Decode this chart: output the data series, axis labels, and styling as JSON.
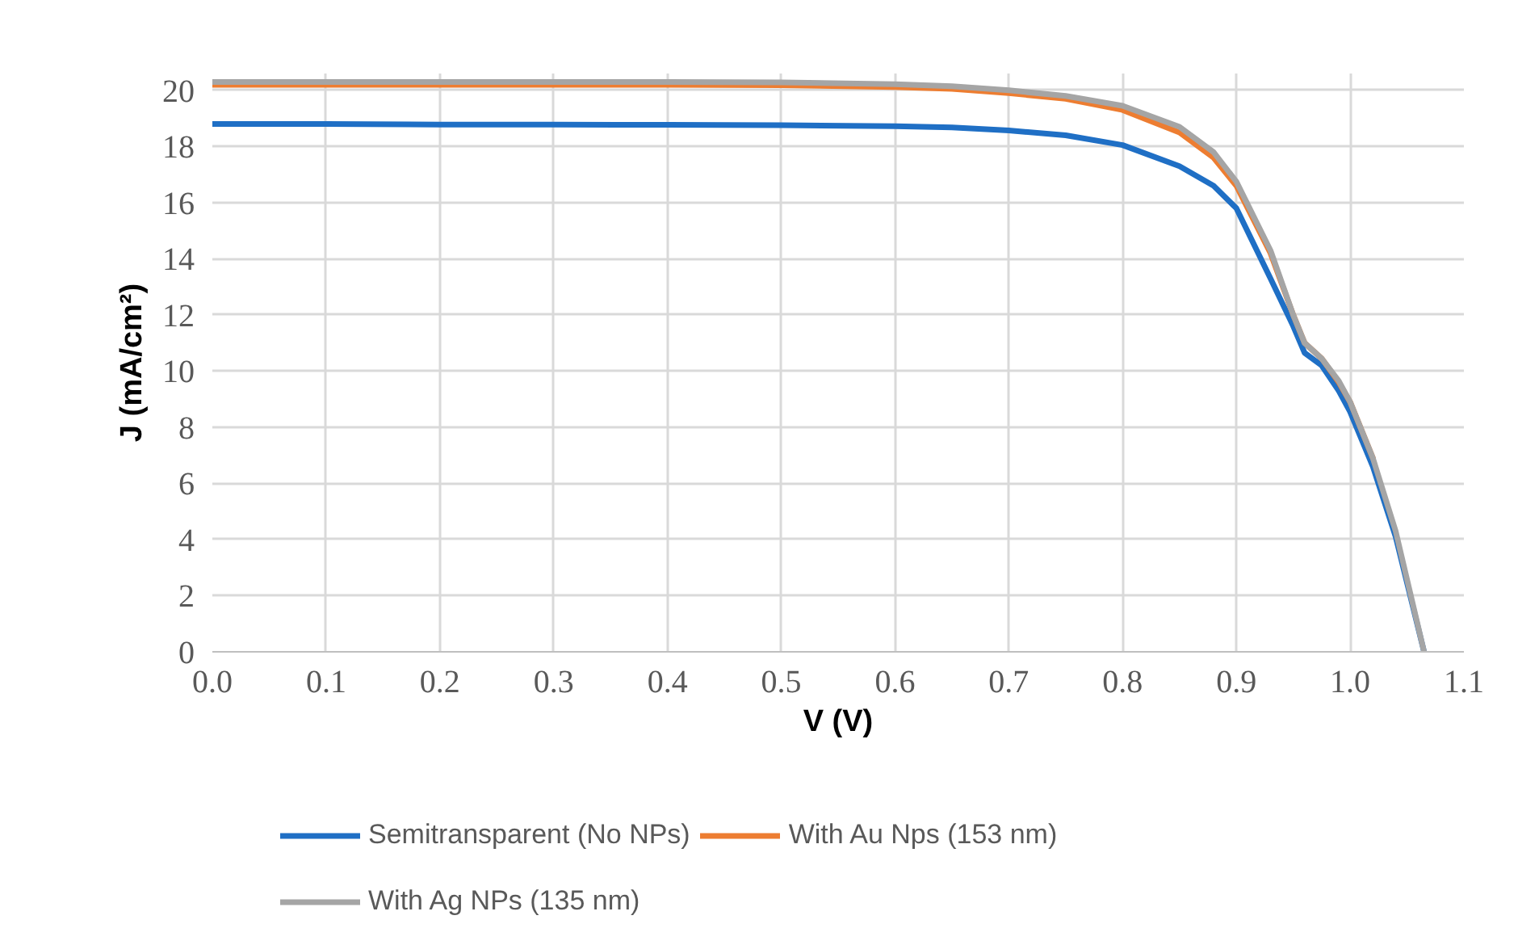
{
  "chart_data": {
    "type": "line",
    "xlabel": "V (V)",
    "ylabel": "J (mA/cm²)",
    "x": [
      0,
      0.1,
      0.2,
      0.3,
      0.4,
      0.5,
      0.6,
      0.65,
      0.7,
      0.75,
      0.8,
      0.85,
      0.88,
      0.9,
      0.93,
      0.95,
      0.96,
      0.975,
      0.99,
      1.0,
      1.02,
      1.04,
      1.065
    ],
    "series": [
      {
        "name": "Semitransparent (No NPs)",
        "color": "#1f6fc5",
        "values": [
          18.8,
          18.8,
          18.78,
          18.78,
          18.77,
          18.76,
          18.72,
          18.68,
          18.57,
          18.4,
          18.05,
          17.3,
          16.6,
          15.8,
          13.3,
          11.6,
          10.65,
          10.2,
          9.3,
          8.55,
          6.6,
          4.1,
          0
        ]
      },
      {
        "name": "With Au Nps (153 nm)",
        "color": "#ed7d31",
        "values": [
          20.2,
          20.2,
          20.2,
          20.2,
          20.2,
          20.18,
          20.12,
          20.05,
          19.9,
          19.7,
          19.3,
          18.5,
          17.6,
          16.6,
          14.2,
          12.0,
          11.0,
          10.45,
          9.6,
          8.9,
          6.9,
          null,
          null
        ]
      },
      {
        "name": "With Ag NPs (135 nm)",
        "color": "#a5a5a5",
        "values": [
          20.3,
          20.3,
          20.3,
          20.3,
          20.3,
          20.28,
          20.22,
          20.15,
          20.0,
          19.8,
          19.45,
          18.7,
          17.8,
          16.75,
          14.3,
          12.0,
          11.0,
          10.45,
          9.65,
          8.9,
          6.9,
          4.3,
          0
        ]
      }
    ],
    "xlim": [
      0,
      1.1
    ],
    "ylim": [
      0,
      20.6
    ],
    "xticks": [
      {
        "value": 0,
        "label": "0.0"
      },
      0.1,
      0.2,
      0.3,
      0.4,
      0.5,
      0.6,
      0.7,
      0.8,
      0.9,
      {
        "value": 1,
        "label": "1.0"
      },
      1.1
    ],
    "yticks": [
      0,
      2,
      4,
      6,
      8,
      10,
      12,
      14,
      16,
      18,
      20
    ],
    "grid": true,
    "legend": "bottom",
    "marker": "none",
    "line_style": "solid"
  }
}
